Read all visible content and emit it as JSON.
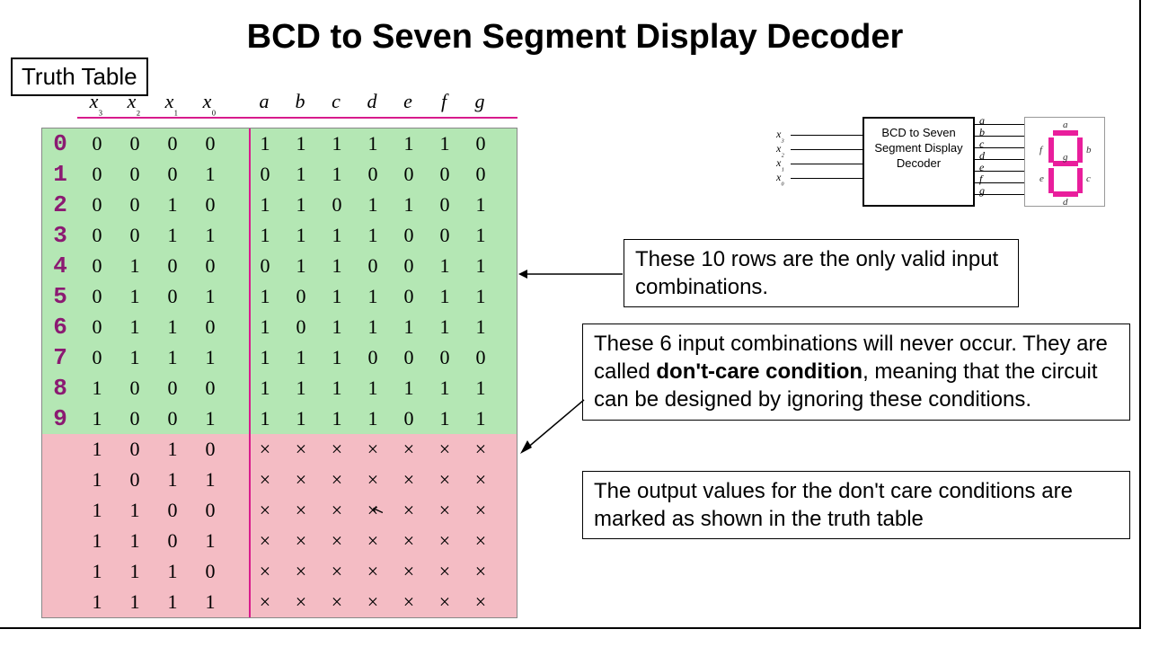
{
  "title": "BCD to Seven Segment Display Decoder",
  "truth_table_label": "Truth Table",
  "colors": {
    "valid_bg": "#b4e7b4",
    "dontcare_bg": "#f4bcc4",
    "digit_color": "#8b1a72",
    "rule_color": "#d81b8c",
    "seg_color": "#e91e9c"
  },
  "table": {
    "input_headers": [
      "x₃",
      "x₂",
      "x₁",
      "x₀"
    ],
    "output_headers": [
      "a",
      "b",
      "c",
      "d",
      "e",
      "f",
      "g"
    ],
    "rows": [
      {
        "digit": "0",
        "in": [
          "0",
          "0",
          "0",
          "0"
        ],
        "out": [
          "1",
          "1",
          "1",
          "1",
          "1",
          "1",
          "0"
        ],
        "valid": true
      },
      {
        "digit": "1",
        "in": [
          "0",
          "0",
          "0",
          "1"
        ],
        "out": [
          "0",
          "1",
          "1",
          "0",
          "0",
          "0",
          "0"
        ],
        "valid": true
      },
      {
        "digit": "2",
        "in": [
          "0",
          "0",
          "1",
          "0"
        ],
        "out": [
          "1",
          "1",
          "0",
          "1",
          "1",
          "0",
          "1"
        ],
        "valid": true
      },
      {
        "digit": "3",
        "in": [
          "0",
          "0",
          "1",
          "1"
        ],
        "out": [
          "1",
          "1",
          "1",
          "1",
          "0",
          "0",
          "1"
        ],
        "valid": true
      },
      {
        "digit": "4",
        "in": [
          "0",
          "1",
          "0",
          "0"
        ],
        "out": [
          "0",
          "1",
          "1",
          "0",
          "0",
          "1",
          "1"
        ],
        "valid": true
      },
      {
        "digit": "5",
        "in": [
          "0",
          "1",
          "0",
          "1"
        ],
        "out": [
          "1",
          "0",
          "1",
          "1",
          "0",
          "1",
          "1"
        ],
        "valid": true
      },
      {
        "digit": "6",
        "in": [
          "0",
          "1",
          "1",
          "0"
        ],
        "out": [
          "1",
          "0",
          "1",
          "1",
          "1",
          "1",
          "1"
        ],
        "valid": true
      },
      {
        "digit": "7",
        "in": [
          "0",
          "1",
          "1",
          "1"
        ],
        "out": [
          "1",
          "1",
          "1",
          "0",
          "0",
          "0",
          "0"
        ],
        "valid": true
      },
      {
        "digit": "8",
        "in": [
          "1",
          "0",
          "0",
          "0"
        ],
        "out": [
          "1",
          "1",
          "1",
          "1",
          "1",
          "1",
          "1"
        ],
        "valid": true
      },
      {
        "digit": "9",
        "in": [
          "1",
          "0",
          "0",
          "1"
        ],
        "out": [
          "1",
          "1",
          "1",
          "1",
          "0",
          "1",
          "1"
        ],
        "valid": true
      },
      {
        "digit": "",
        "in": [
          "1",
          "0",
          "1",
          "0"
        ],
        "out": [
          "×",
          "×",
          "×",
          "×",
          "×",
          "×",
          "×"
        ],
        "valid": false
      },
      {
        "digit": "",
        "in": [
          "1",
          "0",
          "1",
          "1"
        ],
        "out": [
          "×",
          "×",
          "×",
          "×",
          "×",
          "×",
          "×"
        ],
        "valid": false
      },
      {
        "digit": "",
        "in": [
          "1",
          "1",
          "0",
          "0"
        ],
        "out": [
          "×",
          "×",
          "×",
          "×",
          "×",
          "×",
          "×"
        ],
        "valid": false
      },
      {
        "digit": "",
        "in": [
          "1",
          "1",
          "0",
          "1"
        ],
        "out": [
          "×",
          "×",
          "×",
          "×",
          "×",
          "×",
          "×"
        ],
        "valid": false
      },
      {
        "digit": "",
        "in": [
          "1",
          "1",
          "1",
          "0"
        ],
        "out": [
          "×",
          "×",
          "×",
          "×",
          "×",
          "×",
          "×"
        ],
        "valid": false
      },
      {
        "digit": "",
        "in": [
          "1",
          "1",
          "1",
          "1"
        ],
        "out": [
          "×",
          "×",
          "×",
          "×",
          "×",
          "×",
          "×"
        ],
        "valid": false
      }
    ]
  },
  "annotations": {
    "box1": "These 10 rows are the only valid input combinations.",
    "box2_pre": "These 6 input combinations will never occur. They are called ",
    "box2_bold": "don't-care condition",
    "box2_post": ", meaning that the circuit can be designed by ignoring these conditions.",
    "box3": "The output values for the don't care conditions are marked as shown in the truth table"
  },
  "block": {
    "box_text": "BCD to Seven Segment Display Decoder",
    "inputs": [
      "x₃",
      "x₂",
      "x₁",
      "x₀"
    ],
    "outputs": [
      "a",
      "b",
      "c",
      "d",
      "e",
      "f",
      "g"
    ]
  }
}
